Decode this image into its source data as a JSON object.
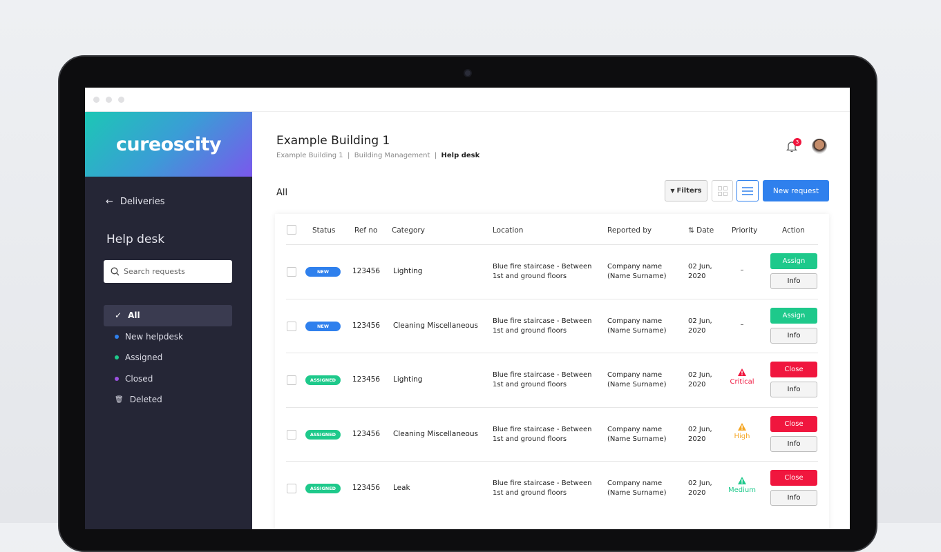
{
  "app": {
    "logo": "cureoscity"
  },
  "sidebar": {
    "back_label": "Deliveries",
    "section_title": "Help desk",
    "search_placeholder": "Search requests",
    "items": [
      {
        "label": "All",
        "icon": "check-icon",
        "active": true
      },
      {
        "label": "New helpdesk",
        "color": "#2f80ed"
      },
      {
        "label": "Assigned",
        "color": "#1ec98b"
      },
      {
        "label": "Closed",
        "color": "#9b51e0"
      },
      {
        "label": "Deleted",
        "icon": "trash-icon"
      }
    ]
  },
  "header": {
    "title": "Example Building 1",
    "breadcrumb": [
      "Example Building 1",
      "Building Management",
      "Help desk"
    ],
    "notifications": "3"
  },
  "toolbar": {
    "view_label": "All",
    "filters": "Filters",
    "new_request": "New request"
  },
  "table": {
    "headers": [
      "Status",
      "Ref no",
      "Category",
      "Location",
      "Reported by",
      "Date",
      "Priority",
      "Action"
    ],
    "rows": [
      {
        "status": "NEW",
        "ref": "123456",
        "category": "Lighting",
        "loc1": "Blue fire staircase - Between",
        "loc2": "1st and ground floors",
        "rep1": "Company name",
        "rep2": "(Name Surname)",
        "date1": "02 Jun,",
        "date2": "2020",
        "priority": "–",
        "action": "Assign",
        "info": "Info"
      },
      {
        "status": "NEW",
        "ref": "123456",
        "category": "Cleaning Miscellaneous",
        "loc1": "Blue fire staircase - Between",
        "loc2": "1st and ground floors",
        "rep1": "Company name",
        "rep2": "(Name Surname)",
        "date1": "02 Jun,",
        "date2": "2020",
        "priority": "–",
        "action": "Assign",
        "info": "Info"
      },
      {
        "status": "ASSIGNED",
        "ref": "123456",
        "category": "Lighting",
        "loc1": "Blue fire staircase - Between",
        "loc2": "1st and ground floors",
        "rep1": "Company name",
        "rep2": "(Name Surname)",
        "date1": "02 Jun,",
        "date2": "2020",
        "priority": "Critical",
        "action": "Close",
        "info": "Info"
      },
      {
        "status": "ASSIGNED",
        "ref": "123456",
        "category": "Cleaning Miscellaneous",
        "loc1": "Blue fire staircase - Between",
        "loc2": "1st and ground floors",
        "rep1": "Company name",
        "rep2": "(Name Surname)",
        "date1": "02 Jun,",
        "date2": "2020",
        "priority": "High",
        "action": "Close",
        "info": "Info"
      },
      {
        "status": "ASSIGNED",
        "ref": "123456",
        "category": "Leak",
        "loc1": "Blue fire staircase - Between",
        "loc2": "1st and ground floors",
        "rep1": "Company name",
        "rep2": "(Name Surname)",
        "date1": "02 Jun,",
        "date2": "2020",
        "priority": "Medium",
        "action": "Close",
        "info": "Info"
      }
    ]
  },
  "colors": {
    "new": "#2f80ed",
    "assigned": "#1ec98b",
    "assign_btn": "#1ec98b",
    "close_btn": "#f0163e",
    "critical": "#f0163e",
    "high": "#f5a623",
    "medium": "#1ec98b",
    "primary": "#2f80ed"
  }
}
